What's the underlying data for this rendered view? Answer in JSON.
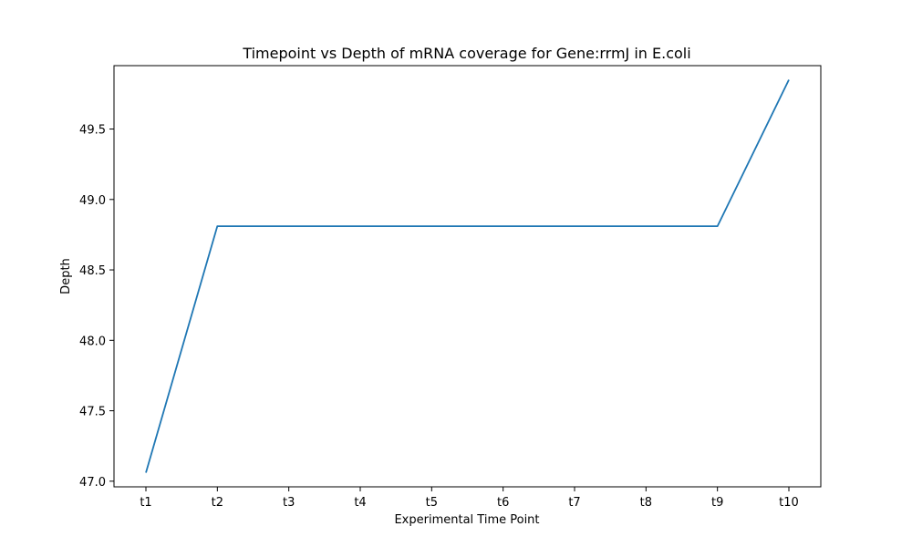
{
  "chart_data": {
    "type": "line",
    "title": "Timepoint vs Depth of mRNA coverage for Gene:rrmJ in E.coli",
    "xlabel": "Experimental Time Point",
    "ylabel": "Depth",
    "categories": [
      "t1",
      "t2",
      "t3",
      "t4",
      "t5",
      "t6",
      "t7",
      "t8",
      "t9",
      "t10"
    ],
    "series": [
      {
        "values": [
          47.06,
          48.81,
          48.81,
          48.81,
          48.81,
          48.81,
          48.81,
          48.81,
          48.81,
          49.85
        ],
        "color": "#1f77b4"
      }
    ],
    "ylim": [
      46.96,
      49.95
    ],
    "yticks": [
      "47.0",
      "47.5",
      "48.0",
      "48.5",
      "49.0",
      "49.5"
    ],
    "grid": false,
    "legend": "none"
  }
}
